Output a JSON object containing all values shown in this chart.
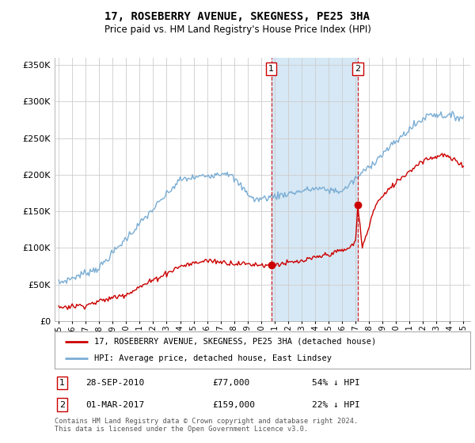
{
  "title": "17, ROSEBERRY AVENUE, SKEGNESS, PE25 3HA",
  "subtitle": "Price paid vs. HM Land Registry's House Price Index (HPI)",
  "hpi_label": "HPI: Average price, detached house, East Lindsey",
  "property_label": "17, ROSEBERRY AVENUE, SKEGNESS, PE25 3HA (detached house)",
  "hpi_color": "#7aadd4",
  "property_color": "#cc0000",
  "shade_color": "#d6e8f5",
  "sale1_price": 77000,
  "sale1_hpi_pct": "54% ↓ HPI",
  "sale1_date_str": "28-SEP-2010",
  "sale1_x": 2010.75,
  "sale2_price": 159000,
  "sale2_hpi_pct": "22% ↓ HPI",
  "sale2_date_str": "01-MAR-2017",
  "sale2_x": 2017.17,
  "footer": "Contains HM Land Registry data © Crown copyright and database right 2024.\nThis data is licensed under the Open Government Licence v3.0.",
  "ylim": [
    0,
    360000
  ],
  "yticks": [
    0,
    50000,
    100000,
    150000,
    200000,
    250000,
    300000,
    350000
  ],
  "xlim_left": 1994.7,
  "xlim_right": 2025.5
}
